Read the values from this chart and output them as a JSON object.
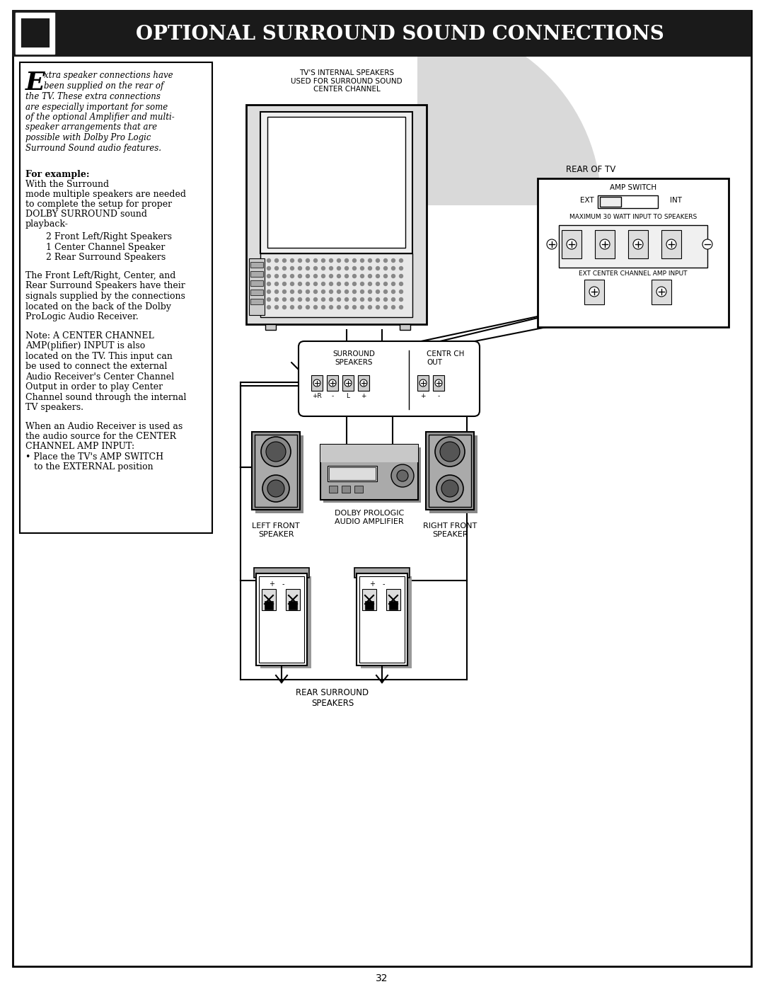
{
  "title": "Optional Surround Sound Connections",
  "bg_color": "#ffffff",
  "header_bg": "#1a1a1a",
  "header_text_color": "#ffffff",
  "body_text_color": "#000000",
  "page_number": "32",
  "left_italic_lines": [
    "xtra speaker connections have",
    "been supplied on the rear of",
    "the TV. These extra connections",
    "are especially important for some",
    "of the optional Amplifier and multi-",
    "speaker arrangements that are",
    "possible with Dolby Pro Logic",
    "Surround Sound audio features."
  ],
  "para2_lines": [
    "For example: With the Surround",
    "mode multiple speakers are needed",
    "to complete the setup for proper",
    "DOLBY SURROUND sound",
    "playback-"
  ],
  "list_items": [
    "2 Front Left/Right Speakers",
    "1 Center Channel Speaker",
    "2 Rear Surround Speakers"
  ],
  "paragraph2_lines": [
    "The Front Left/Right, Center, and",
    "Rear Surround Speakers have their",
    "signals supplied by the connections",
    "located on the back of the Dolby",
    "ProLogic Audio Receiver."
  ],
  "paragraph3_lines": [
    "Note: A CENTER CHANNEL",
    "AMP(plifier) INPUT is also",
    "located on the TV. This input can",
    "be used to connect the external",
    "Audio Receiver's Center Channel",
    "Output in order to play Center",
    "Channel sound through the internal",
    "TV speakers."
  ],
  "paragraph4_lines": [
    "When an Audio Receiver is used as",
    "the audio source for the CENTER",
    "CHANNEL AMP INPUT:",
    "• Place the TV's AMP SWITCH",
    "   to the EXTERNAL position"
  ],
  "tv_label": "TV'S INTERNAL SPEAKERS\nUSED FOR SURROUND SOUND\nCENTER CHANNEL",
  "rear_of_tv_label": "REAR OF TV",
  "amp_switch_label": "AMP SWITCH",
  "ext_label": "EXT",
  "int_label": "INT",
  "max_watt_label": "MAXIMUM 30 WATT INPUT TO SPEAKERS",
  "ext_center_label": "EXT CENTER CHANNEL AMP INPUT",
  "surround_speakers_label": "SURROUND\nSPEAKERS",
  "center_out_label": "CENTR CH\nOUT",
  "left_front_label": "LEFT FRONT\nSPEAKER",
  "dolby_label": "DOLBY PROLOGIC\nAUDIO AMPLIFIER",
  "right_front_label": "RIGHT FRONT\nSPEAKER",
  "rear_surround_label": "REAR SURROUND\nSPEAKERS"
}
